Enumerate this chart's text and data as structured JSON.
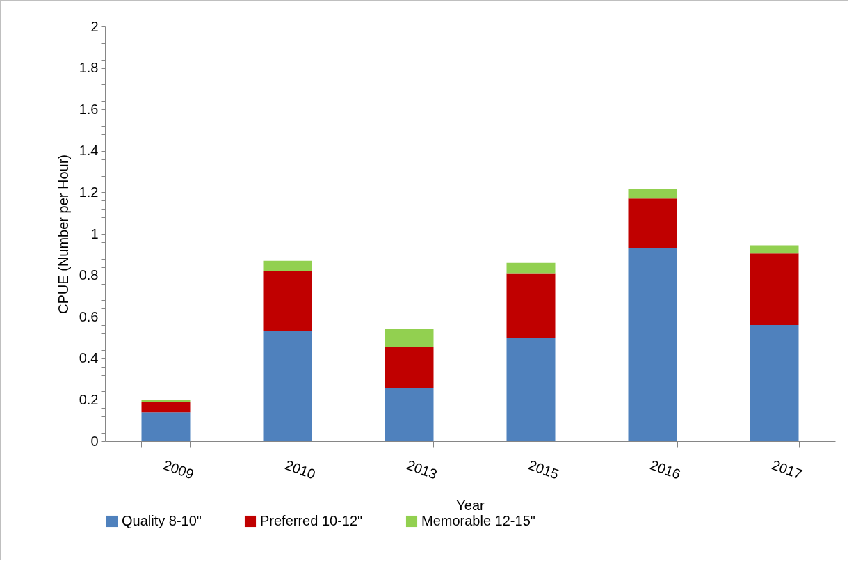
{
  "chart_data": {
    "type": "bar",
    "stacked": true,
    "xlabel": "Year",
    "ylabel": "CPUE (Number per Hour)",
    "categories": [
      "2009",
      "2010",
      "2013",
      "2015",
      "2016",
      "2017"
    ],
    "series": [
      {
        "name": "Quality 8-10\"",
        "color": "#4f81bd",
        "values": [
          0.14,
          0.53,
          0.255,
          0.5,
          0.93,
          0.56
        ]
      },
      {
        "name": "Preferred 10-12\"",
        "color": "#c00000",
        "values": [
          0.05,
          0.29,
          0.2,
          0.31,
          0.24,
          0.345
        ]
      },
      {
        "name": "Memorable 12-15\"",
        "color": "#92d050",
        "values": [
          0.01,
          0.05,
          0.085,
          0.05,
          0.045,
          0.04
        ]
      }
    ],
    "ylim": [
      0,
      2
    ],
    "yticks": [
      0,
      {
        "value": 0.04,
        "label": null
      },
      {
        "value": 0.08,
        "label": null
      },
      {
        "value": 0.12,
        "label": null
      },
      {
        "value": 0.16,
        "label": null
      },
      0.2,
      {
        "value": 0.24,
        "label": null
      },
      {
        "value": 0.28,
        "label": null
      },
      {
        "value": 0.32,
        "label": null
      },
      {
        "value": 0.36,
        "label": null
      },
      0.4,
      {
        "value": 0.44,
        "label": null
      },
      {
        "value": 0.48,
        "label": null
      },
      {
        "value": 0.52,
        "label": null
      },
      {
        "value": 0.56,
        "label": null
      },
      0.6,
      {
        "value": 0.64,
        "label": null
      },
      {
        "value": 0.68,
        "label": null
      },
      {
        "value": 0.72,
        "label": null
      },
      {
        "value": 0.76,
        "label": null
      },
      0.8,
      {
        "value": 0.84,
        "label": null
      },
      {
        "value": 0.88,
        "label": null
      },
      {
        "value": 0.92,
        "label": null
      },
      {
        "value": 0.96,
        "label": null
      },
      1,
      {
        "value": 1.04,
        "label": null
      },
      {
        "value": 1.08,
        "label": null
      },
      {
        "value": 1.12,
        "label": null
      },
      {
        "value": 1.16,
        "label": null
      },
      1.2,
      {
        "value": 1.24,
        "label": null
      },
      {
        "value": 1.28,
        "label": null
      },
      {
        "value": 1.32,
        "label": null
      },
      {
        "value": 1.36,
        "label": null
      },
      1.4,
      {
        "value": 1.44,
        "label": null
      },
      {
        "value": 1.48,
        "label": null
      },
      {
        "value": 1.52,
        "label": null
      },
      {
        "value": 1.56,
        "label": null
      },
      1.6,
      {
        "value": 1.64,
        "label": null
      },
      {
        "value": 1.68,
        "label": null
      },
      {
        "value": 1.72,
        "label": null
      },
      {
        "value": 1.76,
        "label": null
      },
      1.8,
      {
        "value": 1.84,
        "label": null
      },
      {
        "value": 1.88,
        "label": null
      },
      {
        "value": 1.92,
        "label": null
      },
      {
        "value": 1.96,
        "label": null
      },
      2
    ],
    "grid": false,
    "legend": "bottom"
  }
}
